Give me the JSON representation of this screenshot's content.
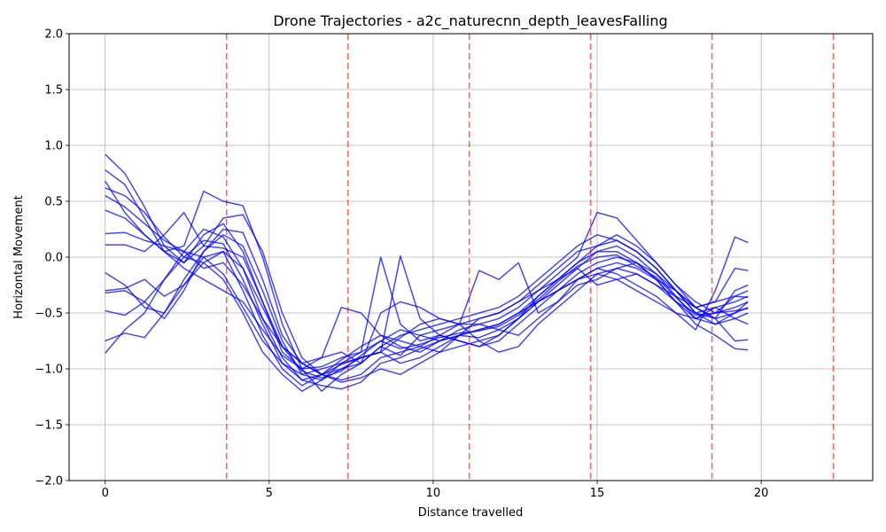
{
  "chart_data": {
    "type": "line",
    "title": "Drone Trajectories - a2c_naturecnn_depth_leavesFalling",
    "xlabel": "Distance travelled",
    "ylabel": "Horizontal Movement",
    "xlim": [
      -1.1,
      23.4
    ],
    "ylim": [
      -2.0,
      2.0
    ],
    "xticks": [
      0,
      5,
      10,
      15,
      20
    ],
    "xtick_labels": [
      "0",
      "5",
      "10",
      "15",
      "20"
    ],
    "yticks": [
      -2.0,
      -1.5,
      -1.0,
      -0.5,
      0.0,
      0.5,
      1.0,
      1.5,
      2.0
    ],
    "ytick_labels": [
      "−2.0",
      "−1.5",
      "−1.0",
      "−0.5",
      "0.0",
      "0.5",
      "1.0",
      "1.5",
      "2.0"
    ],
    "grid": true,
    "line_color": "#0000ff",
    "marker_color": "#ff0000",
    "markers_x": [
      3.7,
      7.4,
      11.1,
      14.8,
      18.5,
      22.2
    ],
    "series": [
      {
        "x": [
          0,
          0.6,
          1.2,
          1.8,
          2.4,
          3.0,
          3.6,
          4.2,
          4.8,
          5.4,
          6.0,
          6.6,
          7.2,
          7.8,
          8.4,
          9.0,
          9.6,
          10.2,
          10.8,
          11.4,
          12.0,
          12.6,
          13.2,
          13.8,
          14.4,
          15.0,
          15.6,
          16.2,
          16.8,
          17.4,
          18.0,
          18.6,
          19.2,
          19.6
        ],
        "y": [
          0.92,
          0.75,
          0.45,
          0.1,
          -0.05,
          0.2,
          0.3,
          0.05,
          -0.4,
          -0.8,
          -0.95,
          -1.05,
          -1.1,
          -1.05,
          -0.9,
          -0.85,
          -0.8,
          -0.7,
          -0.75,
          -0.8,
          -0.75,
          -0.6,
          -0.45,
          -0.3,
          -0.15,
          -0.05,
          0.0,
          -0.05,
          -0.15,
          -0.3,
          -0.45,
          -0.55,
          -0.5,
          -0.45
        ]
      },
      {
        "x": [
          0,
          0.6,
          1.2,
          1.8,
          2.4,
          3.0,
          3.6,
          4.2,
          4.8,
          5.4,
          6.0,
          6.6,
          7.2,
          7.8,
          8.4,
          9.0,
          9.6,
          10.2,
          10.8,
          11.4,
          12.0,
          12.6,
          13.2,
          13.8,
          14.4,
          15.0,
          15.6,
          16.2,
          16.8,
          17.4,
          18.0,
          18.6,
          19.2,
          19.6
        ],
        "y": [
          -0.86,
          -0.65,
          -0.5,
          -0.2,
          0.05,
          0.25,
          0.18,
          -0.1,
          -0.55,
          -0.9,
          -1.1,
          -1.15,
          -1.18,
          -1.12,
          -0.95,
          -0.9,
          -0.82,
          -0.75,
          -0.7,
          -0.72,
          -0.65,
          -0.55,
          -0.4,
          -0.25,
          -0.1,
          0.05,
          0.1,
          0.0,
          -0.15,
          -0.35,
          -0.55,
          -0.6,
          -0.55,
          -0.5
        ]
      },
      {
        "x": [
          0,
          0.6,
          1.2,
          1.8,
          2.4,
          3.0,
          3.6,
          4.2,
          4.8,
          5.4,
          6.0,
          6.6,
          7.2,
          7.8,
          8.4,
          9.0,
          9.6,
          10.2,
          10.8,
          11.4,
          12.0,
          12.6,
          13.2,
          13.8,
          14.4,
          15.0,
          15.6,
          16.2,
          16.8,
          17.4,
          18.0,
          18.6,
          19.2,
          19.6
        ],
        "y": [
          0.68,
          0.4,
          0.2,
          0.05,
          0.1,
          0.59,
          0.5,
          0.46,
          0.0,
          -0.6,
          -1.0,
          -1.2,
          -1.05,
          -0.95,
          -0.8,
          -0.88,
          -0.7,
          -0.65,
          -0.6,
          -0.55,
          -0.5,
          -0.4,
          -0.3,
          -0.15,
          0.0,
          0.4,
          0.35,
          0.15,
          -0.05,
          -0.25,
          -0.4,
          -0.5,
          -0.35,
          -0.3
        ]
      },
      {
        "x": [
          0,
          0.6,
          1.2,
          1.8,
          2.4,
          3.0,
          3.6,
          4.2,
          4.8,
          5.4,
          6.0,
          6.6,
          7.2,
          7.8,
          8.4,
          9.0,
          9.6,
          10.2,
          10.8,
          11.4,
          12.0,
          12.6,
          13.2,
          13.8,
          14.4,
          15.0,
          15.6,
          16.2,
          16.8,
          17.4,
          18.0,
          18.6,
          19.2,
          19.6
        ],
        "y": [
          -0.14,
          -0.25,
          -0.45,
          -0.5,
          -0.2,
          0.05,
          0.2,
          0.1,
          -0.3,
          -0.75,
          -1.05,
          -1.1,
          -0.95,
          -0.85,
          0.0,
          -0.6,
          -0.75,
          -0.7,
          -0.6,
          -0.12,
          -0.2,
          -0.05,
          -0.5,
          -0.4,
          -0.2,
          -0.1,
          -0.15,
          -0.25,
          -0.35,
          -0.5,
          -0.65,
          -0.3,
          0.18,
          0.13
        ]
      },
      {
        "x": [
          0,
          0.6,
          1.2,
          1.8,
          2.4,
          3.0,
          3.6,
          4.2,
          4.8,
          5.4,
          6.0,
          6.6,
          7.2,
          7.8,
          8.4,
          9.0,
          9.6,
          10.2,
          10.8,
          11.4,
          12.0,
          12.6,
          13.2,
          13.8,
          14.4,
          15.0,
          15.6,
          16.2,
          16.8,
          17.4,
          18.0,
          18.6,
          19.2,
          19.6
        ],
        "y": [
          0.21,
          0.22,
          0.15,
          0.1,
          0.05,
          0.0,
          -0.15,
          -0.45,
          -0.75,
          -0.95,
          -1.05,
          -1.0,
          -0.95,
          -0.9,
          -0.85,
          0.01,
          -0.55,
          -0.7,
          -0.75,
          -0.8,
          -0.7,
          -0.55,
          -0.4,
          -0.3,
          -0.2,
          -0.1,
          -0.05,
          -0.1,
          -0.2,
          -0.4,
          -0.55,
          -0.45,
          -0.4,
          -0.35
        ]
      },
      {
        "x": [
          0,
          0.6,
          1.2,
          1.8,
          2.4,
          3.0,
          3.6,
          4.2,
          4.8,
          5.4,
          6.0,
          6.6,
          7.2,
          7.8,
          8.4,
          9.0,
          9.6,
          10.2,
          10.8,
          11.4,
          12.0,
          12.6,
          13.2,
          13.8,
          14.4,
          15.0,
          15.6,
          16.2,
          16.8,
          17.4,
          18.0,
          18.6,
          19.2,
          19.6
        ],
        "y": [
          0.11,
          0.11,
          0.05,
          0.2,
          0.4,
          0.1,
          0.08,
          0.0,
          -0.4,
          -0.85,
          -1.0,
          -0.9,
          -0.85,
          -0.95,
          -0.5,
          -0.4,
          -0.45,
          -0.55,
          -0.6,
          -0.6,
          -0.65,
          -0.7,
          -0.55,
          -0.4,
          -0.25,
          -0.2,
          -0.1,
          -0.05,
          -0.2,
          -0.3,
          -0.5,
          -0.6,
          -0.5,
          -0.4
        ]
      },
      {
        "x": [
          0,
          0.6,
          1.2,
          1.8,
          2.4,
          3.0,
          3.6,
          4.2,
          4.8,
          5.4,
          6.0,
          6.6,
          7.2,
          7.8,
          8.4,
          9.0,
          9.6,
          10.2,
          10.8,
          11.4,
          12.0,
          12.6,
          13.2,
          13.8,
          14.4,
          15.0,
          15.6,
          16.2,
          16.8,
          17.4,
          18.0,
          18.6,
          19.2,
          19.6
        ],
        "y": [
          -0.3,
          -0.28,
          -0.2,
          -0.35,
          -0.25,
          -0.05,
          -0.2,
          -0.5,
          -0.85,
          -1.05,
          -1.2,
          -1.1,
          -1.0,
          -0.9,
          -0.85,
          -0.95,
          -0.9,
          -0.8,
          -0.7,
          -0.65,
          -0.6,
          -0.5,
          -0.4,
          -0.3,
          -0.2,
          -0.15,
          -0.1,
          -0.15,
          -0.25,
          -0.35,
          -0.45,
          -0.55,
          -0.75,
          -0.74
        ]
      },
      {
        "x": [
          0,
          0.6,
          1.2,
          1.8,
          2.4,
          3.0,
          3.6,
          4.2,
          4.8,
          5.4,
          6.0,
          6.6,
          7.2,
          7.8,
          8.4,
          9.0,
          9.6,
          10.2,
          10.8,
          11.4,
          12.0,
          12.6,
          13.2,
          13.8,
          14.4,
          15.0,
          15.6,
          16.2,
          16.8,
          17.4,
          18.0,
          18.6,
          19.2,
          19.6
        ],
        "y": [
          -0.48,
          -0.52,
          -0.4,
          -0.2,
          0.0,
          0.15,
          0.12,
          -0.2,
          -0.6,
          -0.95,
          -1.1,
          -1.05,
          -0.92,
          -0.8,
          -0.7,
          -0.8,
          -0.85,
          -0.75,
          -0.65,
          -0.6,
          -0.55,
          -0.45,
          -0.3,
          -0.2,
          -0.05,
          0.05,
          0.05,
          -0.05,
          -0.2,
          -0.4,
          -0.6,
          -0.7,
          -0.82,
          -0.83
        ]
      },
      {
        "x": [
          0,
          0.6,
          1.2,
          1.8,
          2.4,
          3.0,
          3.6,
          4.2,
          4.8,
          5.4,
          6.0,
          6.6,
          7.2,
          7.8,
          8.4,
          9.0,
          9.6,
          10.2,
          10.8,
          11.4,
          12.0,
          12.6,
          13.2,
          13.8,
          14.4,
          15.0,
          15.6,
          16.2,
          16.8,
          17.4,
          18.0,
          18.6,
          19.2,
          19.6
        ],
        "y": [
          0.78,
          0.65,
          0.35,
          0.05,
          -0.05,
          0.1,
          0.35,
          0.38,
          0.05,
          -0.5,
          -0.9,
          -1.05,
          -1.12,
          -1.08,
          -1.0,
          -1.05,
          -0.95,
          -0.85,
          -0.8,
          -0.75,
          -0.7,
          -0.55,
          -0.35,
          -0.2,
          -0.05,
          0.1,
          0.15,
          0.05,
          -0.1,
          -0.3,
          -0.5,
          -0.55,
          -0.3,
          -0.25
        ]
      },
      {
        "x": [
          0,
          0.6,
          1.2,
          1.8,
          2.4,
          3.0,
          3.6,
          4.2,
          4.8,
          5.4,
          6.0,
          6.6,
          7.2,
          7.8,
          8.4,
          9.0,
          9.6,
          10.2,
          10.8,
          11.4,
          12.0,
          12.6,
          13.2,
          13.8,
          14.4,
          15.0,
          15.6,
          16.2,
          16.8,
          17.4,
          18.0,
          18.6,
          19.2,
          19.6
        ],
        "y": [
          -0.75,
          -0.68,
          -0.72,
          -0.5,
          -0.25,
          0.0,
          0.05,
          -0.3,
          -0.7,
          -1.0,
          -1.15,
          -1.05,
          -0.96,
          -0.9,
          -0.85,
          -0.72,
          -0.6,
          -0.55,
          -0.6,
          -0.75,
          -0.85,
          -0.8,
          -0.6,
          -0.45,
          -0.3,
          -0.15,
          -0.2,
          -0.3,
          -0.4,
          -0.5,
          -0.55,
          -0.5,
          -0.45,
          -0.4
        ]
      },
      {
        "x": [
          0,
          0.6,
          1.2,
          1.8,
          2.4,
          3.0,
          3.6,
          4.2,
          4.8,
          5.4,
          6.0,
          6.6,
          7.2,
          7.8,
          8.4,
          9.0,
          9.6,
          10.2,
          10.8,
          11.4,
          12.0,
          12.6,
          13.2,
          13.8,
          14.4,
          15.0,
          15.6,
          16.2,
          16.8,
          17.4,
          18.0,
          18.6,
          19.2,
          19.6
        ],
        "y": [
          0.55,
          0.45,
          0.3,
          0.15,
          0.05,
          -0.1,
          -0.05,
          -0.25,
          -0.55,
          -0.8,
          -0.95,
          -1.05,
          -1.0,
          -0.95,
          -0.8,
          -0.7,
          -0.65,
          -0.6,
          -0.55,
          -0.5,
          -0.45,
          -0.35,
          -0.2,
          -0.05,
          0.1,
          0.2,
          0.15,
          0.05,
          -0.1,
          -0.3,
          -0.45,
          -0.4,
          -0.35,
          -0.36
        ]
      },
      {
        "x": [
          0,
          0.6,
          1.2,
          1.8,
          2.4,
          3.0,
          3.6,
          4.2,
          4.8,
          5.4,
          6.0,
          6.6,
          7.2,
          7.8,
          8.4,
          9.0,
          9.6,
          10.2,
          10.8,
          11.4,
          12.0,
          12.6,
          13.2,
          13.8,
          14.4,
          15.0,
          15.6,
          16.2,
          16.8,
          17.4,
          18.0,
          18.6,
          19.2,
          19.6
        ],
        "y": [
          0.42,
          0.35,
          0.2,
          0.05,
          -0.1,
          -0.2,
          -0.3,
          -0.4,
          -0.65,
          -0.88,
          -1.0,
          -0.98,
          -0.9,
          -0.85,
          -0.75,
          -0.65,
          -0.7,
          -0.75,
          -0.7,
          -0.65,
          -0.6,
          -0.5,
          -0.35,
          -0.2,
          -0.1,
          -0.25,
          -0.2,
          -0.15,
          -0.25,
          -0.4,
          -0.5,
          -0.45,
          -0.55,
          -0.6
        ]
      },
      {
        "x": [
          0,
          0.6,
          1.2,
          1.8,
          2.4,
          3.0,
          3.6,
          4.2,
          4.8,
          5.4,
          6.0,
          6.6,
          7.2,
          7.8,
          8.4,
          9.0,
          9.6,
          10.2,
          10.8,
          11.4,
          12.0,
          12.6,
          13.2,
          13.8,
          14.4,
          15.0,
          15.6,
          16.2,
          16.8,
          17.4,
          18.0,
          18.6,
          19.2,
          19.6
        ],
        "y": [
          -0.32,
          -0.3,
          -0.4,
          -0.55,
          -0.3,
          0.05,
          0.25,
          0.22,
          -0.2,
          -0.7,
          -0.95,
          -0.9,
          -0.45,
          -0.5,
          -0.7,
          -0.75,
          -0.8,
          -0.85,
          -0.7,
          -0.55,
          -0.5,
          -0.4,
          -0.25,
          -0.1,
          0.05,
          0.1,
          0.2,
          0.1,
          -0.05,
          -0.25,
          -0.45,
          -0.4,
          -0.1,
          -0.12
        ]
      },
      {
        "x": [
          0,
          0.6,
          1.2,
          1.8,
          2.4,
          3.0,
          3.6,
          4.2,
          4.8,
          5.4,
          6.0,
          6.6,
          7.2,
          7.8,
          8.4,
          9.0,
          9.6,
          10.2,
          10.8,
          11.4,
          12.0,
          12.6,
          13.2,
          13.8,
          14.4,
          15.0,
          15.6,
          16.2,
          16.8,
          17.4,
          18.0,
          18.6,
          19.2,
          19.6
        ],
        "y": [
          0.62,
          0.55,
          0.4,
          0.18,
          0.0,
          -0.05,
          0.05,
          -0.1,
          -0.45,
          -0.8,
          -1.02,
          -1.08,
          -1.02,
          -0.88,
          -0.75,
          -0.82,
          -0.78,
          -0.72,
          -0.68,
          -0.66,
          -0.62,
          -0.52,
          -0.38,
          -0.22,
          -0.08,
          0.0,
          0.02,
          -0.08,
          -0.18,
          -0.36,
          -0.52,
          -0.5,
          -0.48,
          -0.46
        ]
      }
    ]
  }
}
